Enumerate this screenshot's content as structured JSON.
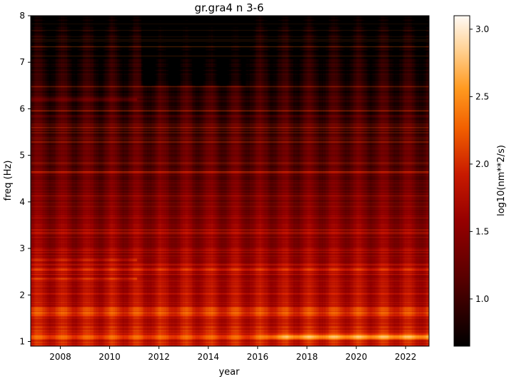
{
  "chart_data": {
    "type": "heatmap",
    "title": "gr.gra4 n 3-6",
    "xlabel": "year",
    "ylabel": "freq (Hz)",
    "xlim": [
      2006.8,
      2022.95
    ],
    "ylim": [
      0.9,
      8.0
    ],
    "x_ticks": [
      2008,
      2010,
      2012,
      2014,
      2016,
      2018,
      2020,
      2022
    ],
    "x_tick_labels": [
      "2008",
      "2010",
      "2012",
      "2014",
      "2016",
      "2018",
      "2020",
      "2022"
    ],
    "y_ticks": [
      1,
      2,
      3,
      4,
      5,
      6,
      7,
      8
    ],
    "y_tick_labels": [
      "1",
      "2",
      "3",
      "4",
      "5",
      "6",
      "7",
      "8"
    ],
    "colormap": "gist_heat",
    "colorbar": {
      "label": "log10(nm**2/s)",
      "range": [
        0.65,
        3.1
      ],
      "ticks": [
        1.0,
        1.5,
        2.0,
        2.5,
        3.0
      ],
      "tick_labels": [
        "1.0",
        "1.5",
        "2.0",
        "2.5",
        "3.0"
      ]
    },
    "features": {
      "persistent_bands_hz": [
        1.1,
        1.6,
        1.7,
        2.55,
        5.85
      ],
      "early_bands_hz": [
        2.35,
        2.75,
        6.2
      ],
      "early_bands_end_year": 2011.1,
      "seasonal_period_years": 1.0,
      "low_freq_increase_start_year": 2015.7
    }
  }
}
